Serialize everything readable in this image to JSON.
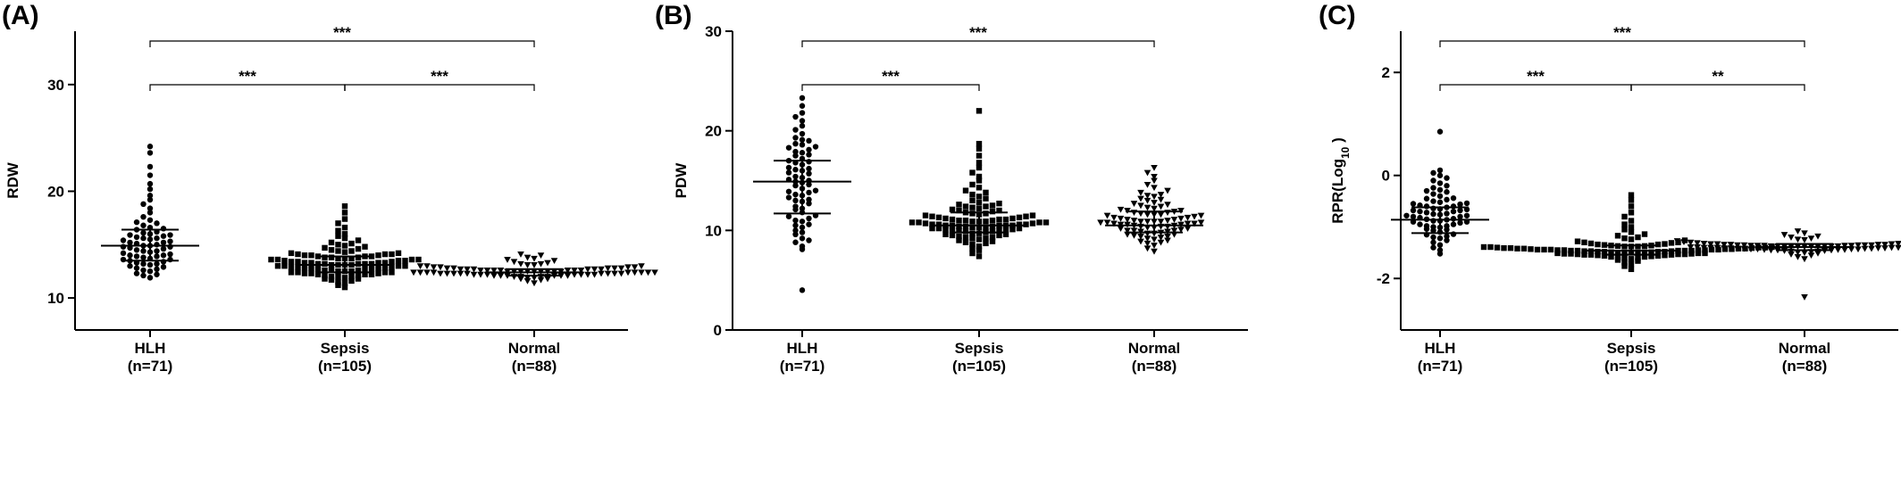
{
  "figure": {
    "categories": [
      {
        "name": "HLH",
        "n": "(n=71)"
      },
      {
        "name": "Sepsis",
        "n": "(n=105)"
      },
      {
        "name": "Normal",
        "n": "(n=88)"
      }
    ]
  },
  "chart_data": [
    {
      "panel": "(A)",
      "type": "scatter",
      "ylabel": "RDW",
      "ylim": [
        7,
        35
      ],
      "yticks": [
        "10",
        "20",
        "30"
      ],
      "yticks_values": [
        10,
        20,
        30
      ],
      "categories": [
        "HLH",
        "Sepsis",
        "Normal"
      ],
      "markers": [
        "circle",
        "square",
        "triangle-down"
      ],
      "series": [
        {
          "values": [
            11.9,
            12.1,
            12.3,
            12.5,
            12.6,
            12.8,
            13.0,
            13.1,
            13.2,
            13.3,
            13.4,
            13.5,
            13.6,
            13.7,
            13.8,
            13.9,
            14.0,
            14.1,
            14.2,
            14.3,
            14.4,
            14.5,
            14.6,
            14.7,
            14.8,
            14.9,
            15.0,
            15.1,
            15.2,
            15.3,
            15.4,
            15.5,
            15.6,
            15.7,
            15.8,
            15.9,
            16.0,
            16.2,
            16.4,
            16.6,
            16.8,
            17.0,
            17.3,
            17.6,
            18.0,
            18.4,
            18.8,
            19.2,
            19.6,
            20.2,
            20.7,
            21.5,
            22.3,
            23.6,
            24.2,
            12.2,
            12.7,
            13.2,
            13.6,
            14.0,
            14.4,
            14.8,
            15.2,
            15.6,
            16.1,
            16.5,
            17.1,
            12.9,
            13.9,
            14.9,
            15.9
          ],
          "median": 14.9,
          "q1": 13.5,
          "q3": 16.4
        },
        {
          "values": [
            11.0,
            11.2,
            11.4,
            11.5,
            11.6,
            11.7,
            11.8,
            11.9,
            12.0,
            12.0,
            12.1,
            12.2,
            12.2,
            12.3,
            12.3,
            12.4,
            12.4,
            12.5,
            12.5,
            12.6,
            12.6,
            12.7,
            12.7,
            12.8,
            12.8,
            12.9,
            12.9,
            13.0,
            13.0,
            13.0,
            13.1,
            13.1,
            13.1,
            13.2,
            13.2,
            13.2,
            13.3,
            13.3,
            13.3,
            13.4,
            13.4,
            13.5,
            13.5,
            13.6,
            13.6,
            13.7,
            13.7,
            13.8,
            13.8,
            13.9,
            13.9,
            14.0,
            14.0,
            14.1,
            14.1,
            14.2,
            14.3,
            14.4,
            14.5,
            14.6,
            14.7,
            14.8,
            14.9,
            15.0,
            15.2,
            15.4,
            15.6,
            15.8,
            16.0,
            16.3,
            16.6,
            17.0,
            17.4,
            18.0,
            18.6,
            12.0,
            12.4,
            12.8,
            13.2,
            13.6,
            14.0,
            14.4,
            12.1,
            12.5,
            12.9,
            13.3,
            13.7,
            14.1,
            11.8,
            12.2,
            12.6,
            13.0,
            13.4,
            13.8,
            14.2,
            12.3,
            12.7,
            13.1,
            13.5,
            13.9,
            12.4,
            12.8,
            13.2,
            13.6,
            15.1
          ],
          "median": 13.1,
          "q1": 12.4,
          "q3": 13.9
        },
        {
          "values": [
            11.4,
            11.6,
            11.7,
            11.8,
            11.8,
            11.9,
            11.9,
            12.0,
            12.0,
            12.0,
            12.1,
            12.1,
            12.1,
            12.1,
            12.2,
            12.2,
            12.2,
            12.2,
            12.3,
            12.3,
            12.3,
            12.3,
            12.3,
            12.4,
            12.4,
            12.4,
            12.4,
            12.4,
            12.5,
            12.5,
            12.5,
            12.5,
            12.5,
            12.6,
            12.6,
            12.6,
            12.6,
            12.7,
            12.7,
            12.7,
            12.7,
            12.8,
            12.8,
            12.8,
            12.9,
            12.9,
            12.9,
            13.0,
            13.0,
            13.1,
            13.1,
            13.2,
            13.2,
            13.3,
            13.4,
            13.5,
            13.6,
            13.7,
            13.8,
            14.0,
            14.1,
            12.0,
            12.1,
            12.2,
            12.3,
            12.4,
            12.5,
            12.6,
            12.7,
            12.8,
            12.2,
            12.3,
            12.4,
            12.5,
            12.6,
            12.3,
            12.4,
            12.5,
            12.4,
            12.5,
            12.6,
            12.2,
            12.3,
            12.7,
            12.8,
            12.9,
            13.0,
            12.1
          ],
          "median": 12.4,
          "q1": 12.1,
          "q3": 12.7
        }
      ],
      "comparisons": [
        {
          "from": 0,
          "to": 2,
          "label": "***",
          "level": 1
        },
        {
          "from": 0,
          "to": 1,
          "label": "***",
          "level": 0
        },
        {
          "from": 1,
          "to": 2,
          "label": "***",
          "level": 0
        }
      ]
    },
    {
      "panel": "(B)",
      "type": "scatter",
      "ylabel": "PDW",
      "ylim": [
        0,
        30
      ],
      "yticks": [
        "0",
        "10",
        "20",
        "30"
      ],
      "yticks_values": [
        0,
        10,
        20,
        30
      ],
      "categories": [
        "HLH",
        "Sepsis",
        "Normal"
      ],
      "markers": [
        "circle",
        "square",
        "triangle-down"
      ],
      "series": [
        {
          "values": [
            4.0,
            8.1,
            8.4,
            8.8,
            9.2,
            9.6,
            10.0,
            10.3,
            10.6,
            10.9,
            11.2,
            11.5,
            11.8,
            12.1,
            12.4,
            12.7,
            13.0,
            13.3,
            13.6,
            13.9,
            14.2,
            14.5,
            14.8,
            15.1,
            15.4,
            15.7,
            16.0,
            16.3,
            16.6,
            16.9,
            17.2,
            17.5,
            17.8,
            18.1,
            18.4,
            18.7,
            19.0,
            19.3,
            19.7,
            20.1,
            20.5,
            21.0,
            21.4,
            21.8,
            22.5,
            23.3,
            9.0,
            9.8,
            10.5,
            11.4,
            12.2,
            13.1,
            13.8,
            14.6,
            15.3,
            16.1,
            16.8,
            17.6,
            18.3,
            19.1,
            12.9,
            14.0,
            15.0,
            16.2,
            17.0,
            11.0,
            13.5,
            14.9,
            15.8,
            17.9,
            18.6
          ],
          "median": 14.9,
          "q1": 11.7,
          "q3": 17.0
        },
        {
          "values": [
            7.4,
            7.7,
            8.0,
            8.2,
            8.4,
            8.6,
            8.8,
            8.9,
            9.0,
            9.1,
            9.2,
            9.3,
            9.4,
            9.5,
            9.6,
            9.7,
            9.8,
            9.9,
            10.0,
            10.0,
            10.1,
            10.1,
            10.2,
            10.2,
            10.3,
            10.3,
            10.4,
            10.4,
            10.5,
            10.5,
            10.5,
            10.6,
            10.6,
            10.6,
            10.7,
            10.7,
            10.8,
            10.8,
            10.9,
            10.9,
            11.0,
            11.0,
            11.1,
            11.1,
            11.2,
            11.3,
            11.4,
            11.5,
            11.6,
            11.7,
            11.8,
            11.9,
            12.0,
            12.1,
            12.2,
            12.3,
            12.4,
            12.5,
            12.6,
            12.8,
            13.0,
            13.2,
            13.4,
            13.6,
            13.8,
            14.0,
            14.3,
            14.6,
            15.0,
            15.4,
            15.8,
            16.3,
            16.8,
            17.5,
            18.2,
            18.7,
            22.0,
            9.6,
            9.9,
            10.2,
            10.5,
            10.8,
            11.1,
            11.4,
            9.3,
            9.7,
            10.1,
            10.5,
            10.9,
            11.3,
            11.7,
            8.7,
            9.2,
            10.0,
            10.4,
            10.8,
            11.2,
            12.0,
            12.7,
            9.5,
            10.3,
            10.6,
            11.0,
            11.5,
            12.4
          ],
          "median": 10.5,
          "q1": 9.8,
          "q3": 11.8
        },
        {
          "values": [
            7.9,
            8.2,
            8.5,
            8.7,
            8.9,
            9.1,
            9.3,
            9.4,
            9.5,
            9.6,
            9.7,
            9.8,
            9.9,
            10.0,
            10.1,
            10.2,
            10.3,
            10.4,
            10.5,
            10.5,
            10.6,
            10.6,
            10.7,
            10.7,
            10.8,
            10.8,
            10.9,
            10.9,
            11.0,
            11.0,
            11.1,
            11.2,
            11.3,
            11.4,
            11.5,
            11.6,
            11.7,
            11.8,
            11.9,
            12.0,
            12.1,
            12.2,
            12.4,
            12.6,
            12.8,
            13.0,
            13.2,
            13.4,
            13.6,
            13.8,
            14.0,
            14.3,
            14.6,
            15.0,
            15.4,
            15.8,
            16.3,
            9.2,
            9.6,
            10.0,
            10.4,
            10.8,
            11.2,
            11.6,
            12.0,
            12.5,
            13.1,
            8.8,
            9.4,
            9.9,
            10.3,
            10.9,
            11.5,
            12.3,
            13.5,
            9.0,
            10.0,
            10.6,
            11.1,
            11.8,
            12.7,
            10.2,
            10.7,
            11.3,
            9.7,
            10.4,
            10.9,
            11.6
          ],
          "median": 10.5,
          "q1": 9.8,
          "q3": 11.9
        }
      ],
      "comparisons": [
        {
          "from": 0,
          "to": 2,
          "label": "***",
          "level": 1
        },
        {
          "from": 0,
          "to": 1,
          "label": "***",
          "level": 0
        }
      ]
    },
    {
      "panel": "(C)",
      "type": "scatter",
      "ylabel": "RPR(Log",
      "ylabel_sub": "10",
      "ylabel_end": " )",
      "ylim": [
        -3.0,
        2.8
      ],
      "yticks": [
        "-2",
        "0",
        "2"
      ],
      "yticks_values": [
        -2,
        0,
        2
      ],
      "categories": [
        "HLH",
        "Sepsis",
        "Normal"
      ],
      "markers": [
        "circle",
        "square",
        "triangle-down"
      ],
      "series": [
        {
          "values": [
            -1.52,
            -1.45,
            -1.4,
            -1.35,
            -1.3,
            -1.26,
            -1.22,
            -1.18,
            -1.14,
            -1.1,
            -1.07,
            -1.04,
            -1.01,
            -0.98,
            -0.95,
            -0.92,
            -0.9,
            -0.88,
            -0.86,
            -0.84,
            -0.82,
            -0.8,
            -0.78,
            -0.76,
            -0.74,
            -0.72,
            -0.7,
            -0.68,
            -0.66,
            -0.64,
            -0.62,
            -0.6,
            -0.58,
            -0.56,
            -0.54,
            -0.52,
            -0.5,
            -0.47,
            -0.44,
            -0.4,
            -0.36,
            -0.32,
            -0.28,
            -0.24,
            -0.2,
            -0.15,
            -0.1,
            -0.05,
            0.0,
            0.05,
            0.1,
            0.85,
            -1.2,
            -1.05,
            -0.95,
            -0.85,
            -0.75,
            -0.65,
            -0.55,
            -0.45,
            -1.15,
            -1.0,
            -0.9,
            -0.8,
            -0.7,
            -0.6,
            -0.88,
            -0.78,
            -0.68,
            -0.98,
            -0.3
          ],
          "median": -0.86,
          "q1": -1.12,
          "q3": -0.62
        },
        {
          "values": [
            -1.82,
            -1.76,
            -1.72,
            -1.69,
            -1.66,
            -1.64,
            -1.62,
            -1.6,
            -1.59,
            -1.58,
            -1.57,
            -1.56,
            -1.55,
            -1.54,
            -1.54,
            -1.53,
            -1.53,
            -1.52,
            -1.52,
            -1.51,
            -1.51,
            -1.5,
            -1.5,
            -1.49,
            -1.49,
            -1.48,
            -1.48,
            -1.47,
            -1.47,
            -1.46,
            -1.46,
            -1.46,
            -1.45,
            -1.45,
            -1.45,
            -1.44,
            -1.44,
            -1.44,
            -1.43,
            -1.43,
            -1.42,
            -1.42,
            -1.41,
            -1.41,
            -1.4,
            -1.4,
            -1.39,
            -1.39,
            -1.38,
            -1.38,
            -1.37,
            -1.36,
            -1.35,
            -1.34,
            -1.33,
            -1.32,
            -1.31,
            -1.3,
            -1.28,
            -1.26,
            -1.24,
            -1.22,
            -1.2,
            -1.17,
            -1.14,
            -1.1,
            -1.05,
            -1.0,
            -0.95,
            -0.88,
            -0.8,
            -0.72,
            -0.6,
            -0.48,
            -0.38,
            -1.58,
            -1.54,
            -1.5,
            -1.46,
            -1.42,
            -1.38,
            -1.34,
            -1.56,
            -1.52,
            -1.48,
            -1.44,
            -1.4,
            -1.36,
            -1.6,
            -1.55,
            -1.51,
            -1.47,
            -1.43,
            -1.39,
            -1.53,
            -1.49,
            -1.45,
            -1.41,
            -1.37,
            -1.5,
            -1.46,
            -1.42,
            -1.48,
            -1.44,
            -1.3
          ],
          "median": -1.46,
          "q1": -1.54,
          "q3": -1.36
        },
        {
          "values": [
            -1.62,
            -1.58,
            -1.55,
            -1.53,
            -1.51,
            -1.5,
            -1.49,
            -1.48,
            -1.47,
            -1.46,
            -1.45,
            -1.45,
            -1.44,
            -1.44,
            -1.43,
            -1.43,
            -1.42,
            -1.42,
            -1.41,
            -1.41,
            -1.4,
            -1.4,
            -1.4,
            -1.39,
            -1.39,
            -1.39,
            -1.38,
            -1.38,
            -1.38,
            -1.37,
            -1.37,
            -1.37,
            -1.36,
            -1.36,
            -1.36,
            -1.35,
            -1.35,
            -1.35,
            -1.34,
            -1.34,
            -1.33,
            -1.33,
            -1.32,
            -1.32,
            -1.31,
            -1.3,
            -1.29,
            -1.28,
            -1.27,
            -1.26,
            -1.25,
            -1.24,
            -1.22,
            -1.2,
            -1.18,
            -1.15,
            -1.12,
            -1.08,
            -2.36,
            -1.46,
            -1.43,
            -1.4,
            -1.37,
            -1.34,
            -1.31,
            -1.44,
            -1.41,
            -1.38,
            -1.35,
            -1.32,
            -1.42,
            -1.39,
            -1.36,
            -1.33,
            -1.47,
            -1.45,
            -1.41,
            -1.38,
            -1.35,
            -1.3,
            -1.4,
            -1.37,
            -1.43,
            -1.39,
            -1.36,
            -1.34,
            -1.42,
            -1.38
          ],
          "median": -1.39,
          "q1": -1.45,
          "q3": -1.33
        }
      ],
      "comparisons": [
        {
          "from": 0,
          "to": 2,
          "label": "***",
          "level": 1
        },
        {
          "from": 0,
          "to": 1,
          "label": "***",
          "level": 0
        },
        {
          "from": 1,
          "to": 2,
          "label": "**",
          "level": 0
        }
      ]
    }
  ]
}
